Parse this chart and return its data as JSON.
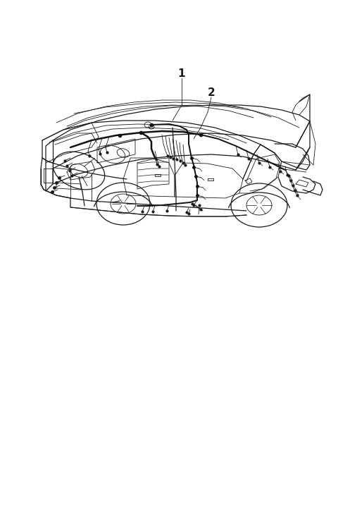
{
  "background_color": "#ffffff",
  "line_color": "#1a1a1a",
  "label1": "1",
  "label2": "2",
  "fig_width": 4.8,
  "fig_height": 7.29,
  "dpi": 100,
  "lw_thin": 0.6,
  "lw_med": 0.9,
  "lw_thick": 1.4,
  "lw_harness": 1.8
}
